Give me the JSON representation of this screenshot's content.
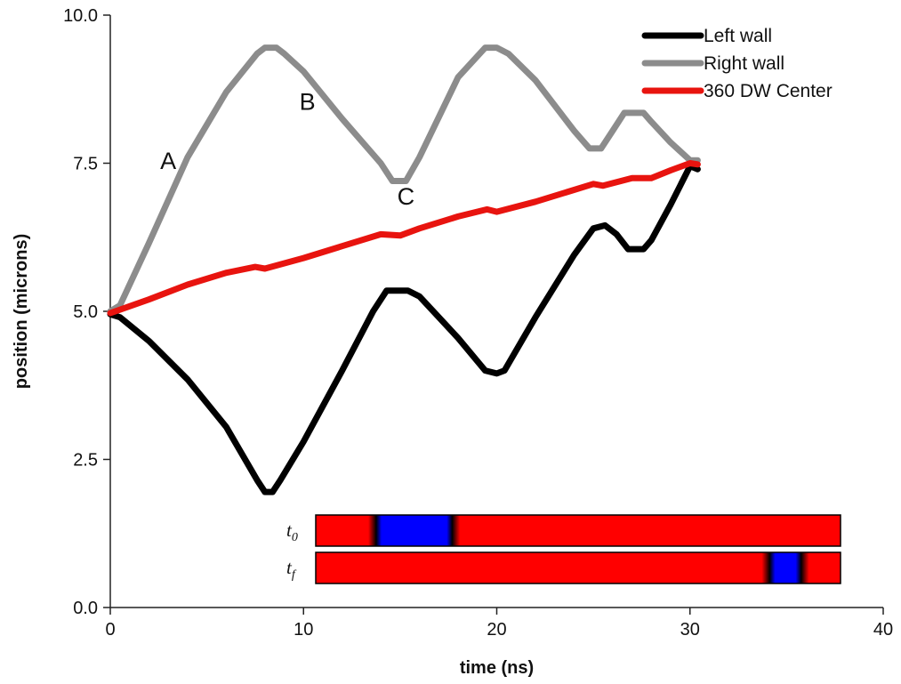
{
  "chart_data": {
    "type": "line",
    "xlabel": "time (ns)",
    "ylabel": "position (microns)",
    "xlim": [
      0,
      40
    ],
    "ylim": [
      0,
      10
    ],
    "x_ticks": [
      "0",
      "10",
      "20",
      "30",
      "40"
    ],
    "y_ticks": [
      "0.0",
      "2.5",
      "5.0",
      "7.5",
      "10.0"
    ],
    "grid": false,
    "legend_position": "top-right",
    "series": [
      {
        "name": "Left wall",
        "color": "#000000",
        "points": [
          [
            0,
            4.95
          ],
          [
            0.5,
            4.9
          ],
          [
            2,
            4.5
          ],
          [
            4,
            3.85
          ],
          [
            6,
            3.05
          ],
          [
            7.6,
            2.15
          ],
          [
            8,
            1.95
          ],
          [
            8.4,
            1.95
          ],
          [
            8.8,
            2.15
          ],
          [
            10,
            2.8
          ],
          [
            12,
            4.0
          ],
          [
            13.6,
            5.0
          ],
          [
            14.3,
            5.35
          ],
          [
            15.4,
            5.35
          ],
          [
            16,
            5.25
          ],
          [
            18,
            4.55
          ],
          [
            19.4,
            4.0
          ],
          [
            20,
            3.95
          ],
          [
            20.4,
            4.0
          ],
          [
            22,
            4.9
          ],
          [
            24,
            5.95
          ],
          [
            25,
            6.4
          ],
          [
            25.6,
            6.45
          ],
          [
            26.2,
            6.3
          ],
          [
            26.8,
            6.05
          ],
          [
            27.6,
            6.05
          ],
          [
            28,
            6.2
          ],
          [
            29,
            6.8
          ],
          [
            30,
            7.45
          ],
          [
            30.4,
            7.4
          ]
        ]
      },
      {
        "name": "Right wall",
        "color": "#8c8c8c",
        "points": [
          [
            0,
            5.0
          ],
          [
            0.5,
            5.1
          ],
          [
            2,
            6.15
          ],
          [
            4,
            7.6
          ],
          [
            6,
            8.7
          ],
          [
            7.6,
            9.35
          ],
          [
            8,
            9.45
          ],
          [
            8.6,
            9.45
          ],
          [
            9,
            9.35
          ],
          [
            10,
            9.05
          ],
          [
            12,
            8.25
          ],
          [
            14,
            7.5
          ],
          [
            14.6,
            7.2
          ],
          [
            15.3,
            7.2
          ],
          [
            16,
            7.6
          ],
          [
            18,
            8.95
          ],
          [
            19.4,
            9.45
          ],
          [
            20,
            9.45
          ],
          [
            20.6,
            9.35
          ],
          [
            22,
            8.9
          ],
          [
            24,
            8.05
          ],
          [
            24.8,
            7.75
          ],
          [
            25.4,
            7.75
          ],
          [
            26,
            8.05
          ],
          [
            26.6,
            8.35
          ],
          [
            27.6,
            8.35
          ],
          [
            28,
            8.2
          ],
          [
            29,
            7.85
          ],
          [
            30,
            7.55
          ],
          [
            30.4,
            7.55
          ]
        ]
      },
      {
        "name": "360 DW Center",
        "color": "#e8140f",
        "points": [
          [
            0,
            4.97
          ],
          [
            2,
            5.2
          ],
          [
            4,
            5.45
          ],
          [
            6,
            5.65
          ],
          [
            7.5,
            5.75
          ],
          [
            8,
            5.72
          ],
          [
            10,
            5.9
          ],
          [
            12,
            6.1
          ],
          [
            14,
            6.3
          ],
          [
            15,
            6.28
          ],
          [
            16,
            6.4
          ],
          [
            18,
            6.6
          ],
          [
            19.5,
            6.72
          ],
          [
            20,
            6.68
          ],
          [
            22,
            6.85
          ],
          [
            24,
            7.05
          ],
          [
            25,
            7.15
          ],
          [
            25.5,
            7.12
          ],
          [
            27,
            7.25
          ],
          [
            28,
            7.25
          ],
          [
            29,
            7.38
          ],
          [
            30,
            7.5
          ],
          [
            30.4,
            7.48
          ]
        ]
      }
    ],
    "annotations": [
      {
        "text": "A",
        "x": 3.0,
        "y": 7.4
      },
      {
        "text": "B",
        "x": 10.2,
        "y": 8.4
      },
      {
        "text": "C",
        "x": 15.3,
        "y": 6.8
      }
    ]
  },
  "inset": {
    "rows": [
      {
        "label": "t",
        "subscript": "0",
        "blue_from": 0.115,
        "blue_to": 0.26
      },
      {
        "label": "t",
        "subscript": "f",
        "blue_from": 0.865,
        "blue_to": 0.925
      }
    ],
    "colors": {
      "domain": "#ff0000",
      "core": "#0000ff",
      "wall": "#000000"
    }
  }
}
